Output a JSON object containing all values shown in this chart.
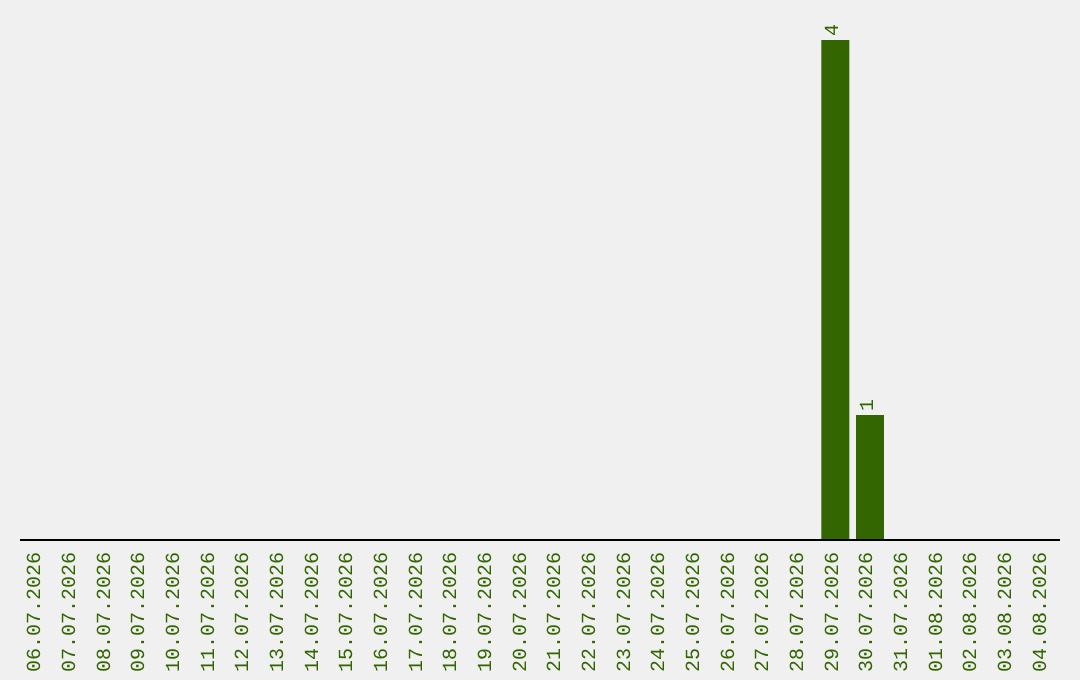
{
  "chart_data": {
    "type": "bar",
    "categories": [
      "06.07.2026",
      "07.07.2026",
      "08.07.2026",
      "09.07.2026",
      "10.07.2026",
      "11.07.2026",
      "12.07.2026",
      "13.07.2026",
      "14.07.2026",
      "15.07.2026",
      "16.07.2026",
      "17.07.2026",
      "18.07.2026",
      "19.07.2026",
      "20.07.2026",
      "21.07.2026",
      "22.07.2026",
      "23.07.2026",
      "24.07.2026",
      "25.07.2026",
      "26.07.2026",
      "27.07.2026",
      "28.07.2026",
      "29.07.2026",
      "30.07.2026",
      "31.07.2026",
      "01.08.2026",
      "02.08.2026",
      "03.08.2026",
      "04.08.2026"
    ],
    "values": [
      null,
      null,
      null,
      null,
      null,
      null,
      null,
      null,
      null,
      null,
      null,
      null,
      null,
      null,
      null,
      null,
      null,
      null,
      null,
      null,
      null,
      null,
      null,
      4,
      1,
      null,
      null,
      null,
      null,
      null
    ],
    "color": "#336600",
    "data_labels": true,
    "tick_labels": "x",
    "grid": false
  }
}
